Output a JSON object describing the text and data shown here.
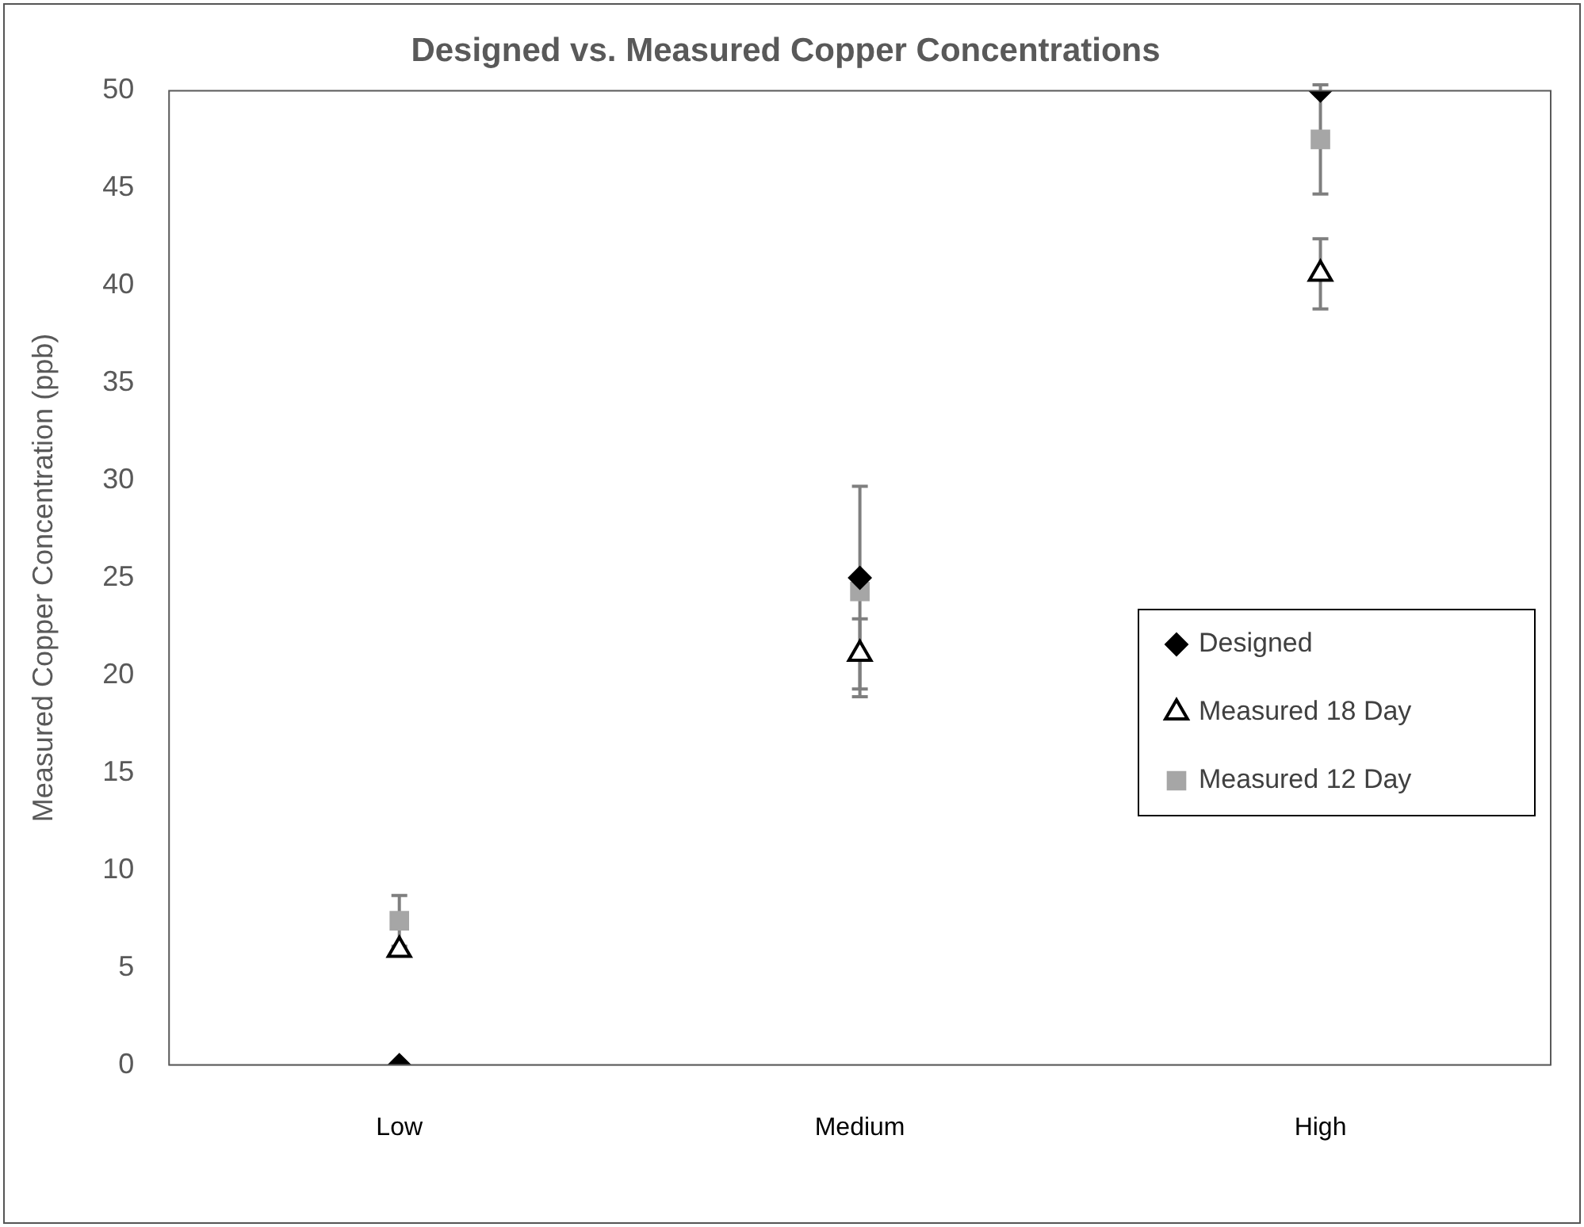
{
  "chart_data": {
    "type": "scatter",
    "title": "Designed vs. Measured Copper Concentrations",
    "ylabel": "Measured Copper Concentration (ppb)",
    "categories": [
      "Low",
      "Medium",
      "High"
    ],
    "series": [
      {
        "name": "Designed",
        "color": "#000000",
        "marker": "diamond",
        "values": [
          0,
          25,
          50
        ]
      },
      {
        "name": "Measured 18 Day",
        "color": "#000000",
        "marker": "triangle",
        "values": [
          5.9,
          21.1,
          40.6
        ],
        "errors": [
          null,
          1.8,
          1.8
        ]
      },
      {
        "name": "Measured 12 Day",
        "color": "#a6a6a6",
        "marker": "square",
        "values": [
          7.4,
          24.3,
          47.5
        ],
        "errors": [
          1.3,
          5.4,
          2.8
        ]
      }
    ],
    "ylim": [
      0,
      50
    ],
    "yticks": [
      0,
      5,
      10,
      15,
      20,
      25,
      30,
      35,
      40,
      45,
      50
    ],
    "grid": false,
    "legend": "right"
  }
}
